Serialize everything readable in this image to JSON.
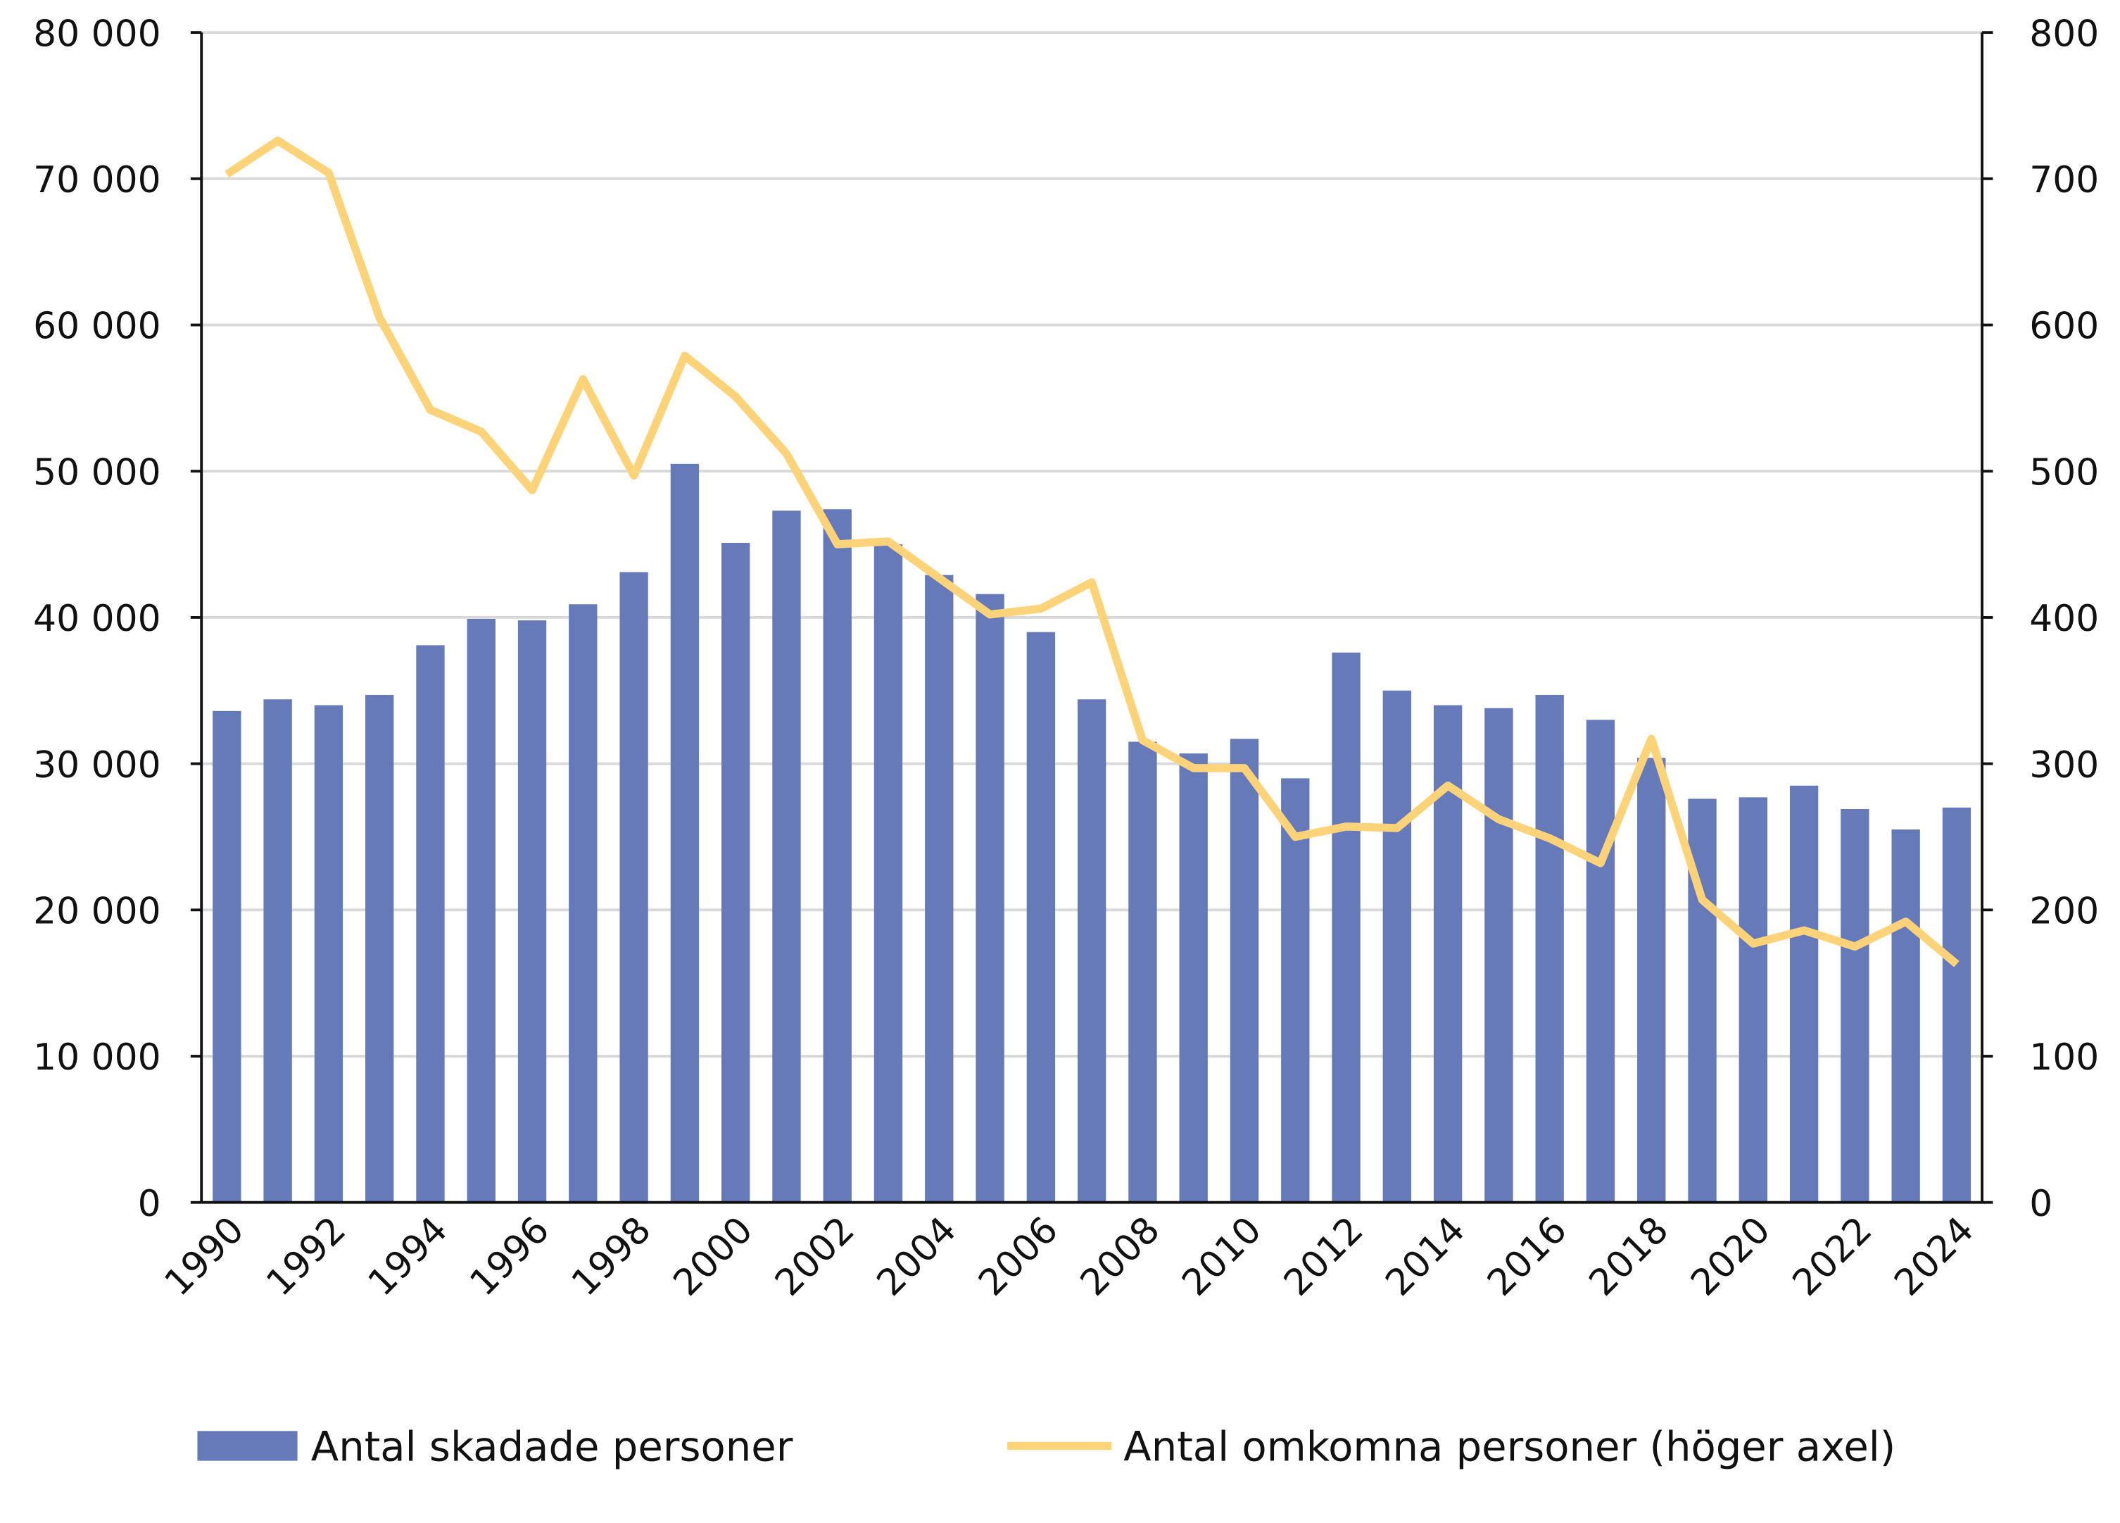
{
  "chart_data": {
    "type": "bar+line",
    "title": "",
    "categories": [
      "1990",
      "1991",
      "1992",
      "1993",
      "1994",
      "1995",
      "1996",
      "1997",
      "1998",
      "1999",
      "2000",
      "2001",
      "2002",
      "2003",
      "2004",
      "2005",
      "2006",
      "2007",
      "2008",
      "2009",
      "2010",
      "2011",
      "2012",
      "2013",
      "2014",
      "2015",
      "2016",
      "2017",
      "2018",
      "2019",
      "2020",
      "2021",
      "2022",
      "2023",
      "2024"
    ],
    "x_tick_labels": [
      "1990",
      "1992",
      "1994",
      "1996",
      "1998",
      "2000",
      "2002",
      "2004",
      "2006",
      "2008",
      "2010",
      "2012",
      "2014",
      "2016",
      "2018",
      "2020",
      "2022",
      "2024"
    ],
    "series": [
      {
        "name": "Antal skadade personer",
        "type": "bar",
        "axis": "left",
        "color": "#6679b9",
        "values": [
          33600,
          34400,
          34000,
          34700,
          38100,
          39900,
          39800,
          40900,
          43100,
          50500,
          45100,
          47300,
          47400,
          45000,
          42900,
          41600,
          39000,
          34400,
          31500,
          30700,
          31700,
          29000,
          37600,
          35000,
          34000,
          33800,
          34700,
          33000,
          30400,
          27600,
          27700,
          28500,
          26900,
          25500,
          27000
        ]
      },
      {
        "name": "Antal omkomna personer (höger axel)",
        "type": "line",
        "axis": "right",
        "color": "#fdd37a",
        "values": [
          703,
          726,
          704,
          605,
          542,
          527,
          487,
          563,
          497,
          579,
          551,
          512,
          450,
          452,
          427,
          402,
          406,
          424,
          316,
          297,
          297,
          250,
          257,
          256,
          285,
          262,
          249,
          232,
          317,
          207,
          177,
          186,
          175,
          192,
          163
        ]
      }
    ],
    "left_axis": {
      "ylim": [
        0,
        80000
      ],
      "tick_labels": [
        "0",
        "10 000",
        "20 000",
        "30 000",
        "40 000",
        "50 000",
        "60 000",
        "70 000",
        "80 000"
      ]
    },
    "right_axis": {
      "ylim": [
        0,
        800
      ],
      "tick_labels": [
        "0",
        "100",
        "200",
        "300",
        "400",
        "500",
        "600",
        "700",
        "800"
      ]
    },
    "grid": true,
    "legend_placement": "bottom"
  }
}
